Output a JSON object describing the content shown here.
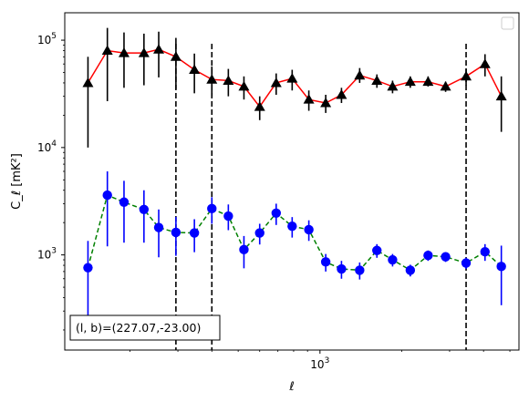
{
  "chart_data": {
    "type": "scatter",
    "title": "",
    "xlabel": "ℓ",
    "ylabel": "C_ℓ [mK²]",
    "xscale": "log",
    "yscale": "log",
    "xlim": [
      115,
      5400
    ],
    "ylim": [
      130,
      180000
    ],
    "grid": false,
    "legend": "top-right",
    "x_tick_labels": [
      {
        "value": 1000,
        "base": "10",
        "exp": "3"
      }
    ],
    "y_tick_labels": [
      {
        "value": 1000,
        "base": "10",
        "exp": "3"
      },
      {
        "value": 10000,
        "base": "10",
        "exp": "4"
      },
      {
        "value": 100000,
        "base": "10",
        "exp": "5"
      }
    ],
    "vlines": [
      295,
      400,
      3450
    ],
    "annotation": "(l, b)=(227.07,-23.00)",
    "series": [
      {
        "marker": "triangle",
        "marker_color": "#000000",
        "line_color": "#ff0000",
        "line_style": "solid",
        "points": [
          {
            "x": 140,
            "y": 40000,
            "lo": 10000,
            "hi": 70000
          },
          {
            "x": 165,
            "y": 80000,
            "lo": 27000,
            "hi": 130000
          },
          {
            "x": 190,
            "y": 76000,
            "lo": 36000,
            "hi": 118000
          },
          {
            "x": 225,
            "y": 76000,
            "lo": 38000,
            "hi": 115000
          },
          {
            "x": 255,
            "y": 82000,
            "lo": 45000,
            "hi": 120000
          },
          {
            "x": 295,
            "y": 70000,
            "lo": 35000,
            "hi": 105000
          },
          {
            "x": 345,
            "y": 53000,
            "lo": 32000,
            "hi": 75000
          },
          {
            "x": 400,
            "y": 43000,
            "lo": 30000,
            "hi": 57000
          },
          {
            "x": 460,
            "y": 42000,
            "lo": 30000,
            "hi": 54000
          },
          {
            "x": 525,
            "y": 37000,
            "lo": 28000,
            "hi": 46000
          },
          {
            "x": 600,
            "y": 24000,
            "lo": 18000,
            "hi": 30000
          },
          {
            "x": 690,
            "y": 40000,
            "lo": 31000,
            "hi": 49000
          },
          {
            "x": 790,
            "y": 44000,
            "lo": 34000,
            "hi": 53000
          },
          {
            "x": 910,
            "y": 28000,
            "lo": 22000,
            "hi": 34000
          },
          {
            "x": 1050,
            "y": 26000,
            "lo": 21000,
            "hi": 31000
          },
          {
            "x": 1200,
            "y": 31000,
            "lo": 26000,
            "hi": 36000
          },
          {
            "x": 1400,
            "y": 47000,
            "lo": 40000,
            "hi": 55000
          },
          {
            "x": 1620,
            "y": 42000,
            "lo": 36000,
            "hi": 48000
          },
          {
            "x": 1850,
            "y": 37000,
            "lo": 32000,
            "hi": 42000
          },
          {
            "x": 2150,
            "y": 41000,
            "lo": 36000,
            "hi": 46000
          },
          {
            "x": 2500,
            "y": 41000,
            "lo": 37000,
            "hi": 46000
          },
          {
            "x": 2900,
            "y": 37000,
            "lo": 33000,
            "hi": 41000
          },
          {
            "x": 3450,
            "y": 46000,
            "lo": 38000,
            "hi": 54000
          },
          {
            "x": 4050,
            "y": 60000,
            "lo": 46000,
            "hi": 74000
          },
          {
            "x": 4650,
            "y": 30000,
            "lo": 14000,
            "hi": 46000
          }
        ]
      },
      {
        "marker": "circle",
        "marker_color": "#0000ff",
        "line_color": "#008000",
        "line_style": "dashed",
        "points": [
          {
            "x": 140,
            "y": 760,
            "lo": 190,
            "hi": 1350
          },
          {
            "x": 165,
            "y": 3600,
            "lo": 1200,
            "hi": 6000
          },
          {
            "x": 190,
            "y": 3100,
            "lo": 1300,
            "hi": 4900
          },
          {
            "x": 225,
            "y": 2650,
            "lo": 1300,
            "hi": 4000
          },
          {
            "x": 255,
            "y": 1800,
            "lo": 950,
            "hi": 2650
          },
          {
            "x": 295,
            "y": 1620,
            "lo": 980,
            "hi": 2260
          },
          {
            "x": 345,
            "y": 1600,
            "lo": 1060,
            "hi": 2150
          },
          {
            "x": 400,
            "y": 2700,
            "lo": 1950,
            "hi": 3450
          },
          {
            "x": 460,
            "y": 2300,
            "lo": 1700,
            "hi": 2950
          },
          {
            "x": 525,
            "y": 1120,
            "lo": 750,
            "hi": 1500
          },
          {
            "x": 600,
            "y": 1600,
            "lo": 1250,
            "hi": 1950
          },
          {
            "x": 690,
            "y": 2450,
            "lo": 1900,
            "hi": 3000
          },
          {
            "x": 790,
            "y": 1850,
            "lo": 1450,
            "hi": 2250
          },
          {
            "x": 910,
            "y": 1720,
            "lo": 1350,
            "hi": 2100
          },
          {
            "x": 1050,
            "y": 860,
            "lo": 700,
            "hi": 1020
          },
          {
            "x": 1200,
            "y": 740,
            "lo": 600,
            "hi": 880
          },
          {
            "x": 1400,
            "y": 720,
            "lo": 590,
            "hi": 850
          },
          {
            "x": 1620,
            "y": 1100,
            "lo": 940,
            "hi": 1260
          },
          {
            "x": 1850,
            "y": 900,
            "lo": 780,
            "hi": 1020
          },
          {
            "x": 2150,
            "y": 720,
            "lo": 630,
            "hi": 810
          },
          {
            "x": 2500,
            "y": 990,
            "lo": 880,
            "hi": 1100
          },
          {
            "x": 2900,
            "y": 960,
            "lo": 860,
            "hi": 1060
          },
          {
            "x": 3450,
            "y": 840,
            "lo": 740,
            "hi": 940
          },
          {
            "x": 4050,
            "y": 1070,
            "lo": 880,
            "hi": 1260
          },
          {
            "x": 4650,
            "y": 780,
            "lo": 340,
            "hi": 1220
          }
        ]
      }
    ]
  }
}
